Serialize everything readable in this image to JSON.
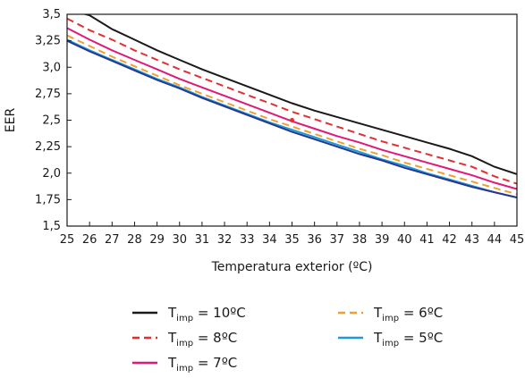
{
  "chart_data": {
    "type": "line",
    "xlabel": "Temperatura exterior (ºC)",
    "ylabel": "EER",
    "xlim": [
      25,
      45
    ],
    "ylim": [
      1.5,
      3.5
    ],
    "x_ticks": [
      "25",
      "26",
      "27",
      "28",
      "29",
      "30",
      "31",
      "32",
      "33",
      "34",
      "35",
      "36",
      "37",
      "38",
      "39",
      "40",
      "41",
      "42",
      "43",
      "44",
      "45"
    ],
    "y_ticks": [
      "1,5",
      "1,75",
      "2,0",
      "2,25",
      "2,5",
      "2,75",
      "3,0",
      "3,25",
      "3,5"
    ],
    "grid": false,
    "legend_position": "bottom",
    "x": [
      25,
      26,
      27,
      28,
      29,
      30,
      31,
      32,
      33,
      34,
      35,
      36,
      37,
      38,
      39,
      40,
      41,
      42,
      43,
      44,
      45
    ],
    "series": [
      {
        "label": {
          "main": "T",
          "sub": "imp",
          "rest": " = 10ºC"
        },
        "color": "#1a1a1a",
        "dash": "solid",
        "values": [
          3.55,
          3.49,
          3.36,
          3.26,
          3.16,
          3.07,
          2.98,
          2.9,
          2.82,
          2.74,
          2.66,
          2.59,
          2.53,
          2.47,
          2.41,
          2.35,
          2.29,
          2.23,
          2.16,
          2.06,
          1.99
        ]
      },
      {
        "label": {
          "main": "T",
          "sub": "imp",
          "rest": " = 8ºC"
        },
        "color": "#e03030",
        "dash": "dashed",
        "values": [
          3.46,
          3.35,
          3.26,
          3.16,
          3.07,
          2.98,
          2.9,
          2.82,
          2.74,
          2.66,
          2.58,
          2.51,
          2.44,
          2.37,
          2.3,
          2.24,
          2.18,
          2.12,
          2.06,
          1.97,
          1.9
        ]
      },
      {
        "label": {
          "main": "T",
          "sub": "imp",
          "rest": " = 7ºC"
        },
        "color": "#e0187a",
        "dash": "solid",
        "values": [
          3.37,
          3.26,
          3.16,
          3.07,
          2.98,
          2.89,
          2.81,
          2.73,
          2.65,
          2.57,
          2.49,
          2.42,
          2.35,
          2.29,
          2.22,
          2.16,
          2.1,
          2.04,
          1.98,
          1.91,
          1.85
        ]
      },
      {
        "label": {
          "main": "T",
          "sub": "imp",
          "rest": " = 6ºC"
        },
        "color": "#f0a030",
        "dash": "dashed",
        "values": [
          3.3,
          3.2,
          3.1,
          3.01,
          2.92,
          2.83,
          2.75,
          2.67,
          2.59,
          2.51,
          2.44,
          2.37,
          2.3,
          2.23,
          2.17,
          2.1,
          2.04,
          1.98,
          1.92,
          1.86,
          1.8
        ]
      },
      {
        "label": {
          "main": "T",
          "sub": "imp",
          "rest": " = 5ºC"
        },
        "color": "#1a9ad8",
        "dash": "solid",
        "values": [
          3.26,
          3.16,
          3.07,
          2.98,
          2.89,
          2.81,
          2.72,
          2.64,
          2.56,
          2.48,
          2.41,
          2.34,
          2.27,
          2.2,
          2.13,
          2.07,
          2.0,
          1.94,
          1.88,
          1.82,
          1.77
        ]
      },
      {
        "label": null,
        "color": "#2a3590",
        "dash": "solid",
        "values": [
          3.25,
          3.15,
          3.06,
          2.97,
          2.88,
          2.8,
          2.71,
          2.63,
          2.55,
          2.47,
          2.39,
          2.32,
          2.25,
          2.18,
          2.12,
          2.05,
          1.99,
          1.93,
          1.87,
          1.82,
          1.77
        ]
      }
    ],
    "marker": {
      "x": 35,
      "y": 2.5,
      "color": "#e03030"
    },
    "legend_layout": [
      [
        0,
        3
      ],
      [
        1,
        4
      ],
      [
        2
      ]
    ]
  }
}
